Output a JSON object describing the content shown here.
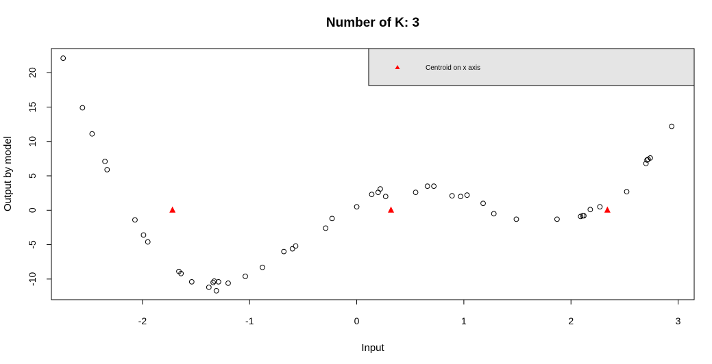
{
  "chart_data": {
    "type": "scatter",
    "title": "Number of K: 3",
    "xlabel": "Input",
    "ylabel": "Output by model",
    "xlim": [
      -2.85,
      3.15
    ],
    "ylim": [
      -13.0,
      23.5
    ],
    "xticks": [
      -2,
      -1,
      0,
      1,
      2,
      3
    ],
    "yticks": [
      -10,
      -5,
      0,
      5,
      10,
      15,
      20
    ],
    "grid": false,
    "legend": {
      "position": "top-right",
      "entries": [
        {
          "label": "Centroid on x axis",
          "marker": "triangle",
          "color": "#ff0000"
        }
      ]
    },
    "series": [
      {
        "marker": "open-circle",
        "color": "#000000",
        "points": [
          [
            -2.74,
            22.1
          ],
          [
            -2.56,
            14.9
          ],
          [
            -2.47,
            11.1
          ],
          [
            -2.35,
            7.1
          ],
          [
            -2.33,
            5.9
          ],
          [
            -2.07,
            -1.4
          ],
          [
            -1.99,
            -3.6
          ],
          [
            -1.95,
            -4.6
          ],
          [
            -1.66,
            -8.9
          ],
          [
            -1.64,
            -9.2
          ],
          [
            -1.54,
            -10.4
          ],
          [
            -1.38,
            -11.2
          ],
          [
            -1.34,
            -10.5
          ],
          [
            -1.33,
            -10.3
          ],
          [
            -1.31,
            -11.7
          ],
          [
            -1.29,
            -10.4
          ],
          [
            -1.2,
            -10.6
          ],
          [
            -1.04,
            -9.6
          ],
          [
            -0.88,
            -8.3
          ],
          [
            -0.68,
            -6.0
          ],
          [
            -0.6,
            -5.6
          ],
          [
            -0.57,
            -5.2
          ],
          [
            -0.29,
            -2.6
          ],
          [
            -0.23,
            -1.2
          ],
          [
            0.0,
            0.5
          ],
          [
            0.14,
            2.3
          ],
          [
            0.2,
            2.6
          ],
          [
            0.22,
            3.1
          ],
          [
            0.27,
            2.0
          ],
          [
            0.55,
            2.6
          ],
          [
            0.66,
            3.5
          ],
          [
            0.72,
            3.5
          ],
          [
            0.89,
            2.1
          ],
          [
            0.97,
            2.0
          ],
          [
            1.03,
            2.2
          ],
          [
            1.18,
            1.0
          ],
          [
            1.28,
            -0.5
          ],
          [
            1.49,
            -1.3
          ],
          [
            1.87,
            -1.3
          ],
          [
            2.09,
            -0.9
          ],
          [
            2.11,
            -0.8
          ],
          [
            2.12,
            -0.8
          ],
          [
            2.18,
            0.1
          ],
          [
            2.27,
            0.5
          ],
          [
            2.52,
            2.7
          ],
          [
            2.7,
            6.8
          ],
          [
            2.71,
            7.3
          ],
          [
            2.72,
            7.4
          ],
          [
            2.74,
            7.6
          ],
          [
            2.94,
            12.2
          ]
        ]
      },
      {
        "name": "Centroid on x axis",
        "marker": "triangle",
        "color": "#ff0000",
        "points": [
          [
            -1.72,
            0
          ],
          [
            0.32,
            0
          ],
          [
            2.34,
            0
          ]
        ]
      }
    ]
  }
}
